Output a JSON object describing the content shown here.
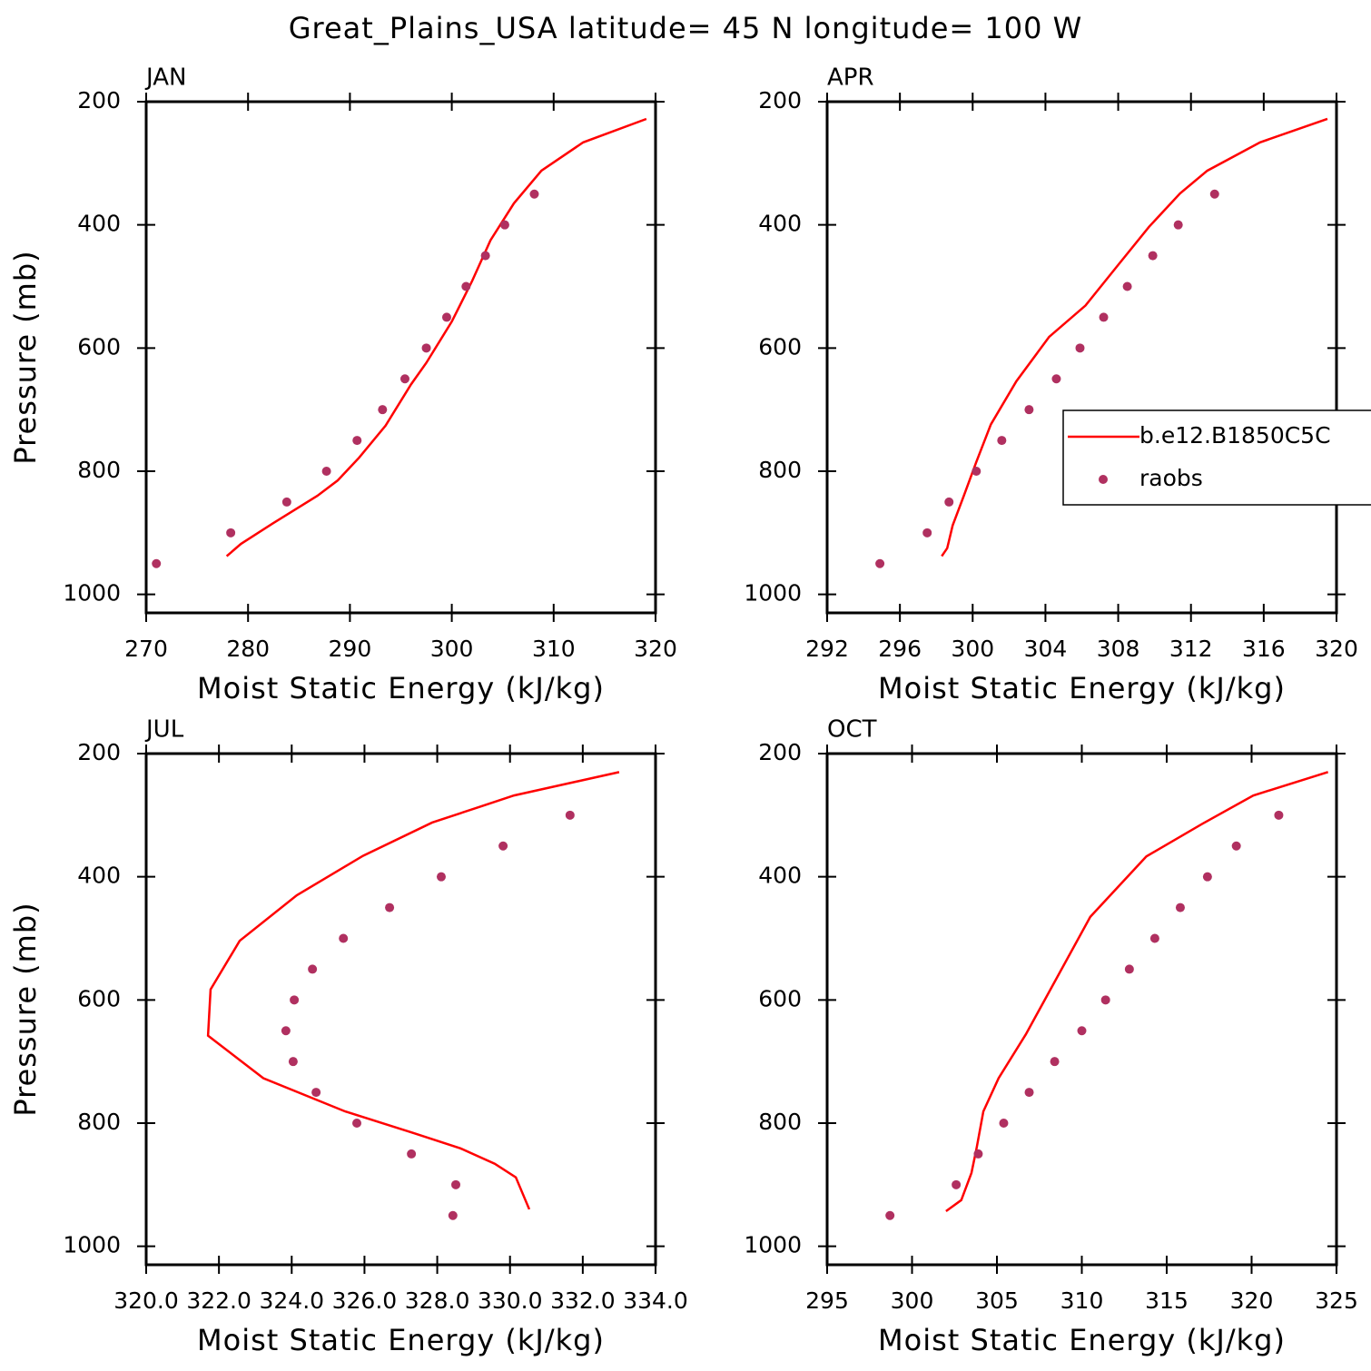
{
  "title": "Great_Plains_USA  latitude= 45 N longitude= 100 W",
  "chart_data": [
    {
      "type": "line",
      "title": "JAN",
      "xlabel": "Moist Static Energy (kJ/kg)",
      "ylabel": "Pressure (mb)",
      "xlim": [
        270,
        320
      ],
      "xticks": [
        270,
        280,
        290,
        300,
        310,
        320
      ],
      "ylim": [
        1030,
        200
      ],
      "yticks": [
        200,
        400,
        600,
        800,
        1000
      ],
      "series": [
        {
          "mode": "line",
          "color": "#ff0000",
          "x": [
            319.1,
            312.9,
            308.8,
            306.1,
            303.8,
            302.0,
            300.0,
            297.5,
            296.0,
            293.5,
            290.9,
            288.8,
            286.8,
            282.4,
            279.3,
            277.9
          ],
          "y": [
            228,
            266,
            312,
            365,
            425,
            491,
            557,
            624,
            659,
            726,
            778,
            815,
            840,
            885,
            918,
            938
          ]
        },
        {
          "mode": "markers",
          "color": "#b03060",
          "x": [
            271.0,
            278.3,
            283.8,
            287.7,
            290.7,
            293.2,
            295.4,
            297.5,
            299.5,
            301.4,
            303.3,
            305.2,
            308.1
          ],
          "y": [
            950,
            900,
            850,
            800,
            750,
            700,
            650,
            600,
            550,
            500,
            450,
            400,
            350
          ]
        }
      ]
    },
    {
      "type": "line",
      "title": "APR",
      "xlabel": "Moist Static Energy (kJ/kg)",
      "xlim": [
        292,
        320
      ],
      "xticks": [
        292,
        296,
        300,
        304,
        308,
        312,
        316,
        320
      ],
      "ylim": [
        1030,
        200
      ],
      "yticks": [
        200,
        400,
        600,
        800,
        1000
      ],
      "legend": "right",
      "series": [
        {
          "name": "b.e12.B1850C5C",
          "mode": "line",
          "color": "#ff0000",
          "x": [
            319.5,
            315.8,
            312.9,
            311.4,
            309.7,
            308.0,
            306.2,
            304.2,
            302.4,
            301.0,
            300.2,
            299.5,
            298.9,
            298.6,
            298.3
          ],
          "y": [
            228,
            266,
            312,
            349,
            403,
            465,
            531,
            582,
            654,
            724,
            785,
            841,
            888,
            925,
            938
          ]
        },
        {
          "name": "raobs",
          "mode": "markers",
          "color": "#b03060",
          "x": [
            294.9,
            297.5,
            298.7,
            300.2,
            301.6,
            303.1,
            304.6,
            305.9,
            307.2,
            308.5,
            309.9,
            311.3,
            313.3
          ],
          "y": [
            950,
            900,
            850,
            800,
            750,
            700,
            650,
            600,
            550,
            500,
            450,
            400,
            350
          ]
        }
      ]
    },
    {
      "type": "line",
      "title": "JUL",
      "xlabel": "Moist Static Energy (kJ/kg)",
      "ylabel": "Pressure (mb)",
      "xlim": [
        320,
        334
      ],
      "xticks": [
        {
          "value": 320,
          "label": "320.0"
        },
        {
          "value": 322,
          "label": "322.0"
        },
        {
          "value": 324,
          "label": "324.0"
        },
        {
          "value": 326,
          "label": "326.0"
        },
        {
          "value": 328,
          "label": "328.0"
        },
        {
          "value": 330,
          "label": "330.0"
        },
        {
          "value": 332,
          "label": "332.0"
        },
        {
          "value": 334,
          "label": "334.0"
        }
      ],
      "ylim": [
        1030,
        200
      ],
      "yticks": [
        200,
        400,
        600,
        800,
        1000
      ],
      "series": [
        {
          "mode": "line",
          "color": "#ff0000",
          "x": [
            333.0,
            330.11,
            327.86,
            325.96,
            324.14,
            322.57,
            321.77,
            321.7,
            323.22,
            325.47,
            327.34,
            328.64,
            329.58,
            330.16,
            330.53
          ],
          "y": [
            230,
            268,
            312,
            366,
            430,
            504,
            583,
            658,
            727,
            781,
            816,
            841,
            866,
            888,
            940
          ]
        },
        {
          "mode": "markers",
          "color": "#b03060",
          "x": [
            328.43,
            328.51,
            327.29,
            325.79,
            324.67,
            324.04,
            323.84,
            324.07,
            324.57,
            325.42,
            326.69,
            328.11,
            329.81,
            331.65
          ],
          "y": [
            950,
            900,
            850,
            800,
            750,
            700,
            650,
            600,
            550,
            500,
            450,
            400,
            350,
            300
          ]
        }
      ]
    },
    {
      "type": "line",
      "title": "OCT",
      "xlabel": "Moist Static Energy (kJ/kg)",
      "xlim": [
        295,
        325
      ],
      "xticks": [
        295,
        300,
        305,
        310,
        315,
        320,
        325
      ],
      "ylim": [
        1030,
        200
      ],
      "yticks": [
        200,
        400,
        600,
        800,
        1000
      ],
      "series": [
        {
          "mode": "line",
          "color": "#ff0000",
          "x": [
            324.5,
            320.1,
            317.1,
            313.8,
            310.5,
            306.7,
            305.1,
            304.2,
            303.8,
            303.5,
            302.9,
            302.0
          ],
          "y": [
            230,
            268,
            314,
            367,
            465,
            656,
            727,
            781,
            841,
            881,
            925,
            943
          ]
        },
        {
          "mode": "markers",
          "color": "#b03060",
          "x": [
            298.7,
            302.6,
            303.9,
            305.4,
            306.9,
            308.4,
            310.0,
            311.4,
            312.8,
            314.3,
            315.8,
            317.4,
            319.1,
            321.6
          ],
          "y": [
            950,
            900,
            850,
            800,
            750,
            700,
            650,
            600,
            550,
            500,
            450,
            400,
            350,
            300
          ]
        }
      ]
    }
  ]
}
